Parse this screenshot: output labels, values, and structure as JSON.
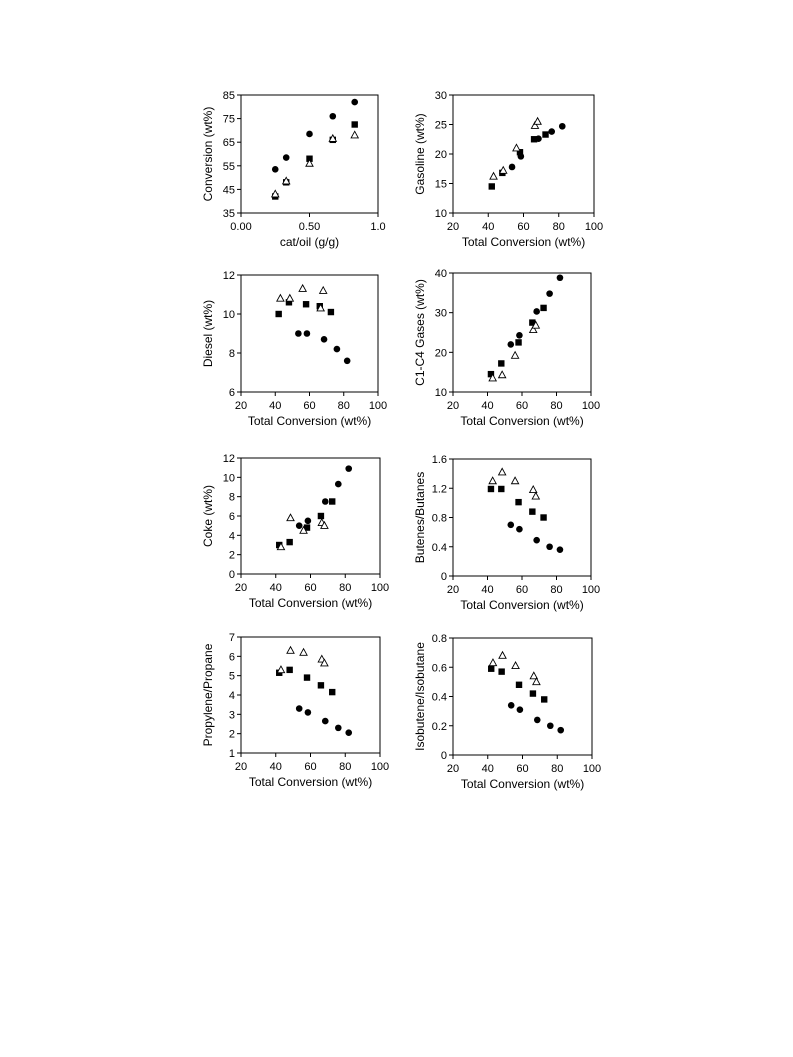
{
  "chart_data": [
    {
      "type": "scatter",
      "xlabel": "cat/oil (g/g)",
      "ylabel": "Conversion (wt%)",
      "xlim": [
        0.0,
        1.0
      ],
      "ylim": [
        35,
        85
      ],
      "xticks": [
        "0.00",
        "0.50",
        "1.0"
      ],
      "xtick_values": [
        0,
        0.5,
        1.0
      ],
      "yticks": [
        "35",
        "45",
        "55",
        "65",
        "75",
        "85"
      ],
      "ytick_values": [
        35,
        45,
        55,
        65,
        75,
        85
      ],
      "series": [
        {
          "marker": "circle",
          "points": [
            [
              0.25,
              53.5
            ],
            [
              0.33,
              58.5
            ],
            [
              0.5,
              68.5
            ],
            [
              0.67,
              76
            ],
            [
              0.83,
              82
            ]
          ]
        },
        {
          "marker": "square",
          "points": [
            [
              0.25,
              42
            ],
            [
              0.33,
              48
            ],
            [
              0.5,
              58
            ],
            [
              0.67,
              66
            ],
            [
              0.83,
              72.5
            ]
          ]
        },
        {
          "marker": "triangle",
          "points": [
            [
              0.25,
              43
            ],
            [
              0.33,
              48.5
            ],
            [
              0.5,
              56
            ],
            [
              0.67,
              66.5
            ],
            [
              0.83,
              68
            ]
          ]
        }
      ]
    },
    {
      "type": "scatter",
      "xlabel": "Total Conversion (wt%)",
      "ylabel": "Gasoline (wt%)",
      "xlim": [
        20,
        100
      ],
      "ylim": [
        10,
        30
      ],
      "xticks": [
        "20",
        "40",
        "60",
        "80",
        "100"
      ],
      "xtick_values": [
        20,
        40,
        60,
        80,
        100
      ],
      "yticks": [
        "10",
        "15",
        "20",
        "25",
        "30"
      ],
      "ytick_values": [
        10,
        15,
        20,
        25,
        30
      ],
      "series": [
        {
          "marker": "circle",
          "points": [
            [
              53.5,
              17.8
            ],
            [
              58.5,
              19.6
            ],
            [
              68.5,
              22.6
            ],
            [
              76,
              23.8
            ],
            [
              82,
              24.7
            ]
          ]
        },
        {
          "marker": "square",
          "points": [
            [
              42,
              14.5
            ],
            [
              48,
              16.8
            ],
            [
              58,
              20.3
            ],
            [
              66,
              22.5
            ],
            [
              72.5,
              23.3
            ]
          ]
        },
        {
          "marker": "triangle",
          "points": [
            [
              43,
              16.2
            ],
            [
              48.5,
              17.2
            ],
            [
              56,
              21
            ],
            [
              66.5,
              24.8
            ],
            [
              68,
              25.5
            ]
          ]
        }
      ]
    },
    {
      "type": "scatter",
      "xlabel": "Total Conversion (wt%)",
      "ylabel": "Diesel (wt%)",
      "xlim": [
        20,
        100
      ],
      "ylim": [
        6,
        12
      ],
      "xticks": [
        "20",
        "40",
        "60",
        "80",
        "100"
      ],
      "xtick_values": [
        20,
        40,
        60,
        80,
        100
      ],
      "yticks": [
        "6",
        "8",
        "10",
        "12"
      ],
      "ytick_values": [
        6,
        8,
        10,
        12
      ],
      "series": [
        {
          "marker": "circle",
          "points": [
            [
              53.5,
              9
            ],
            [
              58.5,
              9
            ],
            [
              68.5,
              8.7
            ],
            [
              76,
              8.2
            ],
            [
              82,
              7.6
            ]
          ]
        },
        {
          "marker": "square",
          "points": [
            [
              42,
              10
            ],
            [
              48,
              10.6
            ],
            [
              58,
              10.5
            ],
            [
              66,
              10.4
            ],
            [
              72.5,
              10.1
            ]
          ]
        },
        {
          "marker": "triangle",
          "points": [
            [
              43,
              10.8
            ],
            [
              48.5,
              10.8
            ],
            [
              56,
              11.3
            ],
            [
              66.5,
              10.3
            ],
            [
              68,
              11.2
            ]
          ]
        }
      ]
    },
    {
      "type": "scatter",
      "xlabel": "Total Conversion (wt%)",
      "ylabel": "C1-C4 Gases (wt%)",
      "xlim": [
        20,
        100
      ],
      "ylim": [
        10,
        40
      ],
      "xticks": [
        "20",
        "40",
        "60",
        "80",
        "100"
      ],
      "xtick_values": [
        20,
        40,
        60,
        80,
        100
      ],
      "yticks": [
        "10",
        "20",
        "30",
        "40"
      ],
      "ytick_values": [
        10,
        20,
        30,
        40
      ],
      "series": [
        {
          "marker": "circle",
          "points": [
            [
              53.5,
              22
            ],
            [
              58.5,
              24.3
            ],
            [
              68.5,
              30.3
            ],
            [
              76,
              34.8
            ],
            [
              82,
              38.8
            ]
          ]
        },
        {
          "marker": "square",
          "points": [
            [
              42,
              14.5
            ],
            [
              48,
              17.2
            ],
            [
              58,
              22.5
            ],
            [
              66,
              27.5
            ],
            [
              72.5,
              31.2
            ]
          ]
        },
        {
          "marker": "triangle",
          "points": [
            [
              43,
              13.5
            ],
            [
              48.5,
              14.3
            ],
            [
              56,
              19.2
            ],
            [
              66.5,
              25.7
            ],
            [
              68,
              26.8
            ]
          ]
        }
      ]
    },
    {
      "type": "scatter",
      "xlabel": "Total Conversion (wt%)",
      "ylabel": "Coke (wt%)",
      "xlim": [
        20,
        100
      ],
      "ylim": [
        0,
        12
      ],
      "xticks": [
        "20",
        "40",
        "60",
        "80",
        "100"
      ],
      "xtick_values": [
        20,
        40,
        60,
        80,
        100
      ],
      "yticks": [
        "0",
        "2",
        "4",
        "6",
        "8",
        "10",
        "12"
      ],
      "ytick_values": [
        0,
        2,
        4,
        6,
        8,
        10,
        12
      ],
      "series": [
        {
          "marker": "circle",
          "points": [
            [
              53.5,
              5
            ],
            [
              58.5,
              5.5
            ],
            [
              68.5,
              7.5
            ],
            [
              76,
              9.3
            ],
            [
              82,
              10.9
            ]
          ]
        },
        {
          "marker": "square",
          "points": [
            [
              42,
              3
            ],
            [
              48,
              3.3
            ],
            [
              58,
              4.8
            ],
            [
              66,
              6
            ],
            [
              72.5,
              7.5
            ]
          ]
        },
        {
          "marker": "triangle",
          "points": [
            [
              43,
              2.8
            ],
            [
              48.5,
              5.8
            ],
            [
              56,
              4.5
            ],
            [
              66.5,
              5.3
            ],
            [
              68,
              5
            ]
          ]
        }
      ]
    },
    {
      "type": "scatter",
      "xlabel": "Total Conversion (wt%)",
      "ylabel": "Butenes/Butanes",
      "xlim": [
        20,
        100
      ],
      "ylim": [
        0,
        1.6
      ],
      "xticks": [
        "20",
        "40",
        "60",
        "80",
        "100"
      ],
      "xtick_values": [
        20,
        40,
        60,
        80,
        100
      ],
      "yticks": [
        "0",
        "0.4",
        "0.8",
        "1.2",
        "1.6"
      ],
      "ytick_values": [
        0,
        0.4,
        0.8,
        1.2,
        1.6
      ],
      "series": [
        {
          "marker": "circle",
          "points": [
            [
              53.5,
              0.7
            ],
            [
              58.5,
              0.64
            ],
            [
              68.5,
              0.49
            ],
            [
              76,
              0.4
            ],
            [
              82,
              0.36
            ]
          ]
        },
        {
          "marker": "square",
          "points": [
            [
              42,
              1.19
            ],
            [
              48,
              1.19
            ],
            [
              58,
              1.01
            ],
            [
              66,
              0.88
            ],
            [
              72.5,
              0.8
            ]
          ]
        },
        {
          "marker": "triangle",
          "points": [
            [
              43,
              1.3
            ],
            [
              48.5,
              1.42
            ],
            [
              56,
              1.3
            ],
            [
              66.5,
              1.18
            ],
            [
              68,
              1.09
            ]
          ]
        }
      ]
    },
    {
      "type": "scatter",
      "xlabel": "Total Conversion (wt%)",
      "ylabel": "Propylene/Propane",
      "xlim": [
        20,
        100
      ],
      "ylim": [
        1,
        7
      ],
      "xticks": [
        "20",
        "40",
        "60",
        "80",
        "100"
      ],
      "xtick_values": [
        20,
        40,
        60,
        80,
        100
      ],
      "yticks": [
        "1",
        "2",
        "3",
        "4",
        "5",
        "6",
        "7"
      ],
      "ytick_values": [
        1,
        2,
        3,
        4,
        5,
        6,
        7
      ],
      "series": [
        {
          "marker": "circle",
          "points": [
            [
              53.5,
              3.3
            ],
            [
              58.5,
              3.1
            ],
            [
              68.5,
              2.65
            ],
            [
              76,
              2.3
            ],
            [
              82,
              2.05
            ]
          ]
        },
        {
          "marker": "square",
          "points": [
            [
              42,
              5.15
            ],
            [
              48,
              5.3
            ],
            [
              58,
              4.9
            ],
            [
              66,
              4.5
            ],
            [
              72.5,
              4.15
            ]
          ]
        },
        {
          "marker": "triangle",
          "points": [
            [
              43,
              5.3
            ],
            [
              48.5,
              6.3
            ],
            [
              56,
              6.2
            ],
            [
              66.5,
              5.85
            ],
            [
              68,
              5.65
            ]
          ]
        }
      ]
    },
    {
      "type": "scatter",
      "xlabel": "Total Conversion (wt%)",
      "ylabel": "Isobutene/Isobutane",
      "xlim": [
        20,
        100
      ],
      "ylim": [
        0,
        0.8
      ],
      "xticks": [
        "20",
        "40",
        "60",
        "80",
        "100"
      ],
      "xtick_values": [
        20,
        40,
        60,
        80,
        100
      ],
      "yticks": [
        "0",
        "0.2",
        "0.4",
        "0.6",
        "0.8"
      ],
      "ytick_values": [
        0,
        0.2,
        0.4,
        0.6,
        0.8
      ],
      "series": [
        {
          "marker": "circle",
          "points": [
            [
              53.5,
              0.34
            ],
            [
              58.5,
              0.31
            ],
            [
              68.5,
              0.24
            ],
            [
              76,
              0.2
            ],
            [
              82,
              0.17
            ]
          ]
        },
        {
          "marker": "square",
          "points": [
            [
              42,
              0.59
            ],
            [
              48,
              0.57
            ],
            [
              58,
              0.48
            ],
            [
              66,
              0.42
            ],
            [
              72.5,
              0.38
            ]
          ]
        },
        {
          "marker": "triangle",
          "points": [
            [
              43,
              0.63
            ],
            [
              48.5,
              0.68
            ],
            [
              56,
              0.61
            ],
            [
              66.5,
              0.54
            ],
            [
              68,
              0.5
            ]
          ]
        }
      ]
    }
  ]
}
